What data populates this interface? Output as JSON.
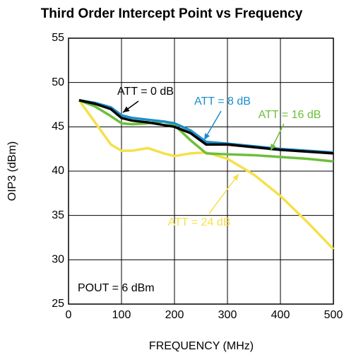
{
  "chart_data": {
    "type": "line",
    "title": "Third Order Intercept Point vs Frequency",
    "x_label": "FREQUENCY (MHz)",
    "y_label": "OIP3 (dBm)",
    "x": [
      20,
      50,
      80,
      100,
      120,
      150,
      180,
      200,
      230,
      260,
      300,
      350,
      400,
      450,
      500
    ],
    "series": [
      {
        "name": "ATT = 24 dB",
        "color": "#f5e04a",
        "values": [
          48,
          45.5,
          43,
          42.3,
          42.3,
          42.6,
          42.0,
          41.7,
          42.0,
          42.1,
          41.4,
          39.6,
          37.2,
          34.3,
          31.2
        ]
      },
      {
        "name": "ATT = 16 dB",
        "color": "#6cbf3a",
        "values": [
          48,
          47.3,
          46.2,
          45.4,
          45.3,
          45.4,
          45.6,
          45.2,
          43.5,
          42.0,
          41.9,
          41.8,
          41.6,
          41.4,
          41.1
        ]
      },
      {
        "name": "ATT = 8 dB",
        "color": "#1a8fc9",
        "values": [
          48,
          47.7,
          47.2,
          46.3,
          46.0,
          45.8,
          45.6,
          45.4,
          44.6,
          43.3,
          43.1,
          42.8,
          42.5,
          42.3,
          42.1
        ]
      },
      {
        "name": "ATT = 0 dB",
        "color": "#000000",
        "values": [
          48,
          47.6,
          47.0,
          46.0,
          45.7,
          45.5,
          45.2,
          45.0,
          44.3,
          43.0,
          43.0,
          42.7,
          42.4,
          42.2,
          42.0
        ]
      }
    ],
    "annotations": [
      "POUT = 6 dBm"
    ],
    "xlim": [
      0,
      500
    ],
    "xticks": [
      0,
      100,
      200,
      300,
      400,
      500
    ],
    "ylim": [
      25,
      55
    ],
    "yticks": [
      25,
      30,
      35,
      40,
      45,
      50,
      55
    ],
    "grid": true
  }
}
